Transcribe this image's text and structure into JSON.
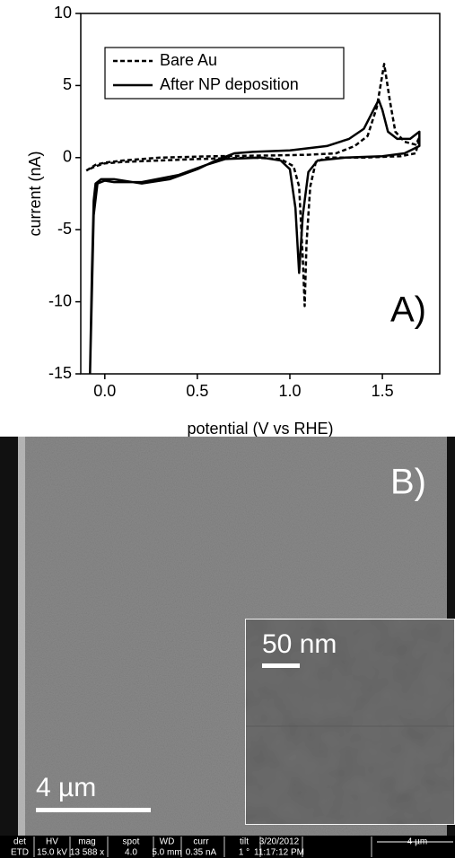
{
  "chart_data": {
    "type": "line",
    "xlabel": "potential (V vs RHE)",
    "ylabel": "current (nA)",
    "annotation": "A)",
    "xlim": [
      -0.13,
      1.81
    ],
    "ylim": [
      -15,
      10
    ],
    "xticks": [
      {
        "value": 0,
        "label": "0.0"
      },
      0.5,
      {
        "value": 1,
        "label": "1.0"
      },
      1.5
    ],
    "yticks": [
      -15,
      -10,
      -5,
      0,
      5,
      10
    ],
    "legend": "upper left",
    "series": [
      {
        "name": "Bare Au",
        "color": "#000000",
        "dash": true,
        "x": [
          -0.1,
          -0.05,
          0,
          0.1,
          0.3,
          0.6,
          0.9,
          1.1,
          1.25,
          1.35,
          1.42,
          1.47,
          1.51,
          1.54,
          1.57,
          1.62,
          1.68,
          1.7,
          1.68,
          1.6,
          1.4,
          1.2,
          1.14,
          1.11,
          1.09,
          1.08,
          1.07,
          1.05,
          1.02,
          0.95,
          0.8,
          0.5,
          0.3,
          0.1,
          0,
          -0.05,
          -0.1
        ],
        "values": [
          -0.9,
          -0.5,
          -0.35,
          -0.2,
          0,
          0.1,
          0.15,
          0.2,
          0.3,
          0.8,
          1.5,
          3.5,
          6.5,
          4,
          1.8,
          1.1,
          0.9,
          1.4,
          0.3,
          0.1,
          0,
          0,
          -0.3,
          -2,
          -6,
          -10.3,
          -7,
          -2,
          -0.6,
          -0.1,
          0,
          -0.1,
          -0.2,
          -0.3,
          -0.4,
          -0.6,
          -0.9
        ]
      },
      {
        "name": "After NP deposition",
        "color": "#000000",
        "dash": false,
        "x": [
          -0.08,
          -0.07,
          -0.06,
          -0.05,
          -0.02,
          0.05,
          0.2,
          0.35,
          0.5,
          0.6,
          0.7,
          0.8,
          1.0,
          1.2,
          1.32,
          1.4,
          1.46,
          1.48,
          1.5,
          1.53,
          1.58,
          1.65,
          1.7,
          1.7,
          1.62,
          1.5,
          1.3,
          1.15,
          1.1,
          1.07,
          1.05,
          1.03,
          1.0,
          0.95,
          0.85,
          0.65,
          0.55,
          0.4,
          0.2,
          0.05,
          0,
          -0.04,
          -0.06,
          -0.08
        ],
        "values": [
          -15,
          -8,
          -3,
          -1.8,
          -1.5,
          -1.5,
          -1.8,
          -1.5,
          -0.8,
          -0.2,
          0.3,
          0.4,
          0.5,
          0.8,
          1.3,
          2,
          3.5,
          4,
          3.3,
          1.8,
          1.3,
          1.3,
          1.8,
          0.8,
          0.3,
          0.1,
          0,
          -0.2,
          -1,
          -4,
          -8,
          -3.5,
          -0.8,
          -0.2,
          0,
          -0.1,
          -0.5,
          -1.2,
          -1.7,
          -1.7,
          -1.6,
          -1.8,
          -4,
          -15
        ]
      }
    ]
  },
  "panel_b": {
    "label": "B)",
    "inset_scale": "50 nm",
    "scale": "4 µm",
    "info_bar": {
      "headers": [
        "det",
        "HV",
        "mag",
        "spot",
        "WD",
        "curr",
        "tilt",
        "3/20/2012",
        "4 µm"
      ],
      "values": [
        "ETD",
        "15.0 kV",
        "13 588 x",
        "4.0",
        "5.0 mm",
        "0.35 nA",
        "1 °",
        "11:17:12 PM"
      ]
    }
  }
}
